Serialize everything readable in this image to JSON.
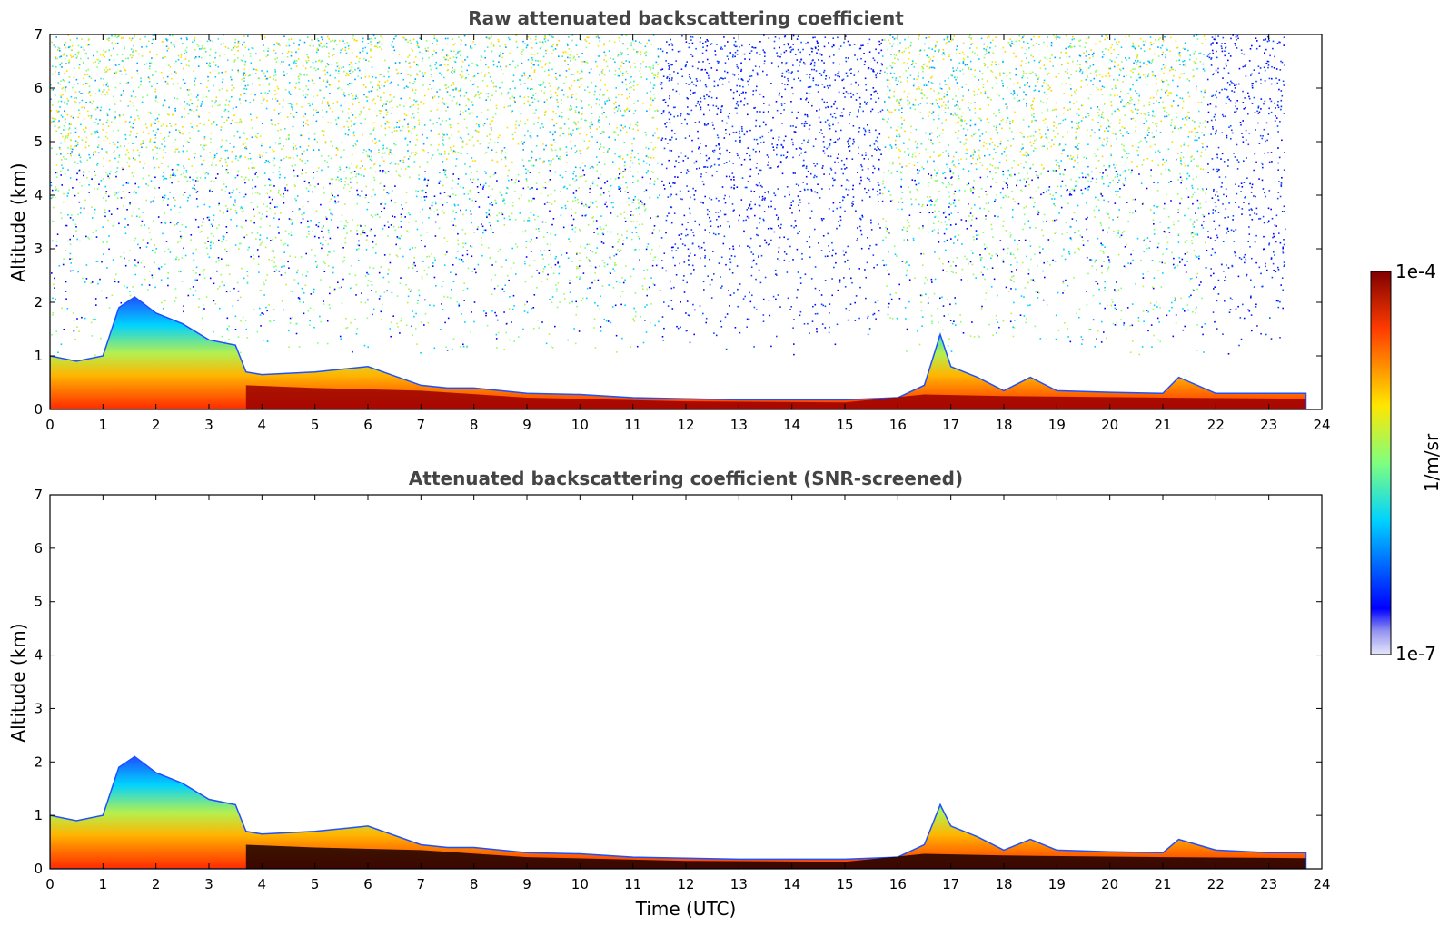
{
  "chart_data": [
    {
      "type": "heatmap",
      "title": "Raw attenuated backscattering coefficient",
      "xlabel": "",
      "ylabel": "Altitude (km)",
      "xlim": [
        0,
        24
      ],
      "ylim": [
        0,
        7
      ],
      "x_ticks": [
        "0",
        "1",
        "2",
        "3",
        "4",
        "5",
        "6",
        "7",
        "8",
        "9",
        "10",
        "11",
        "12",
        "13",
        "14",
        "15",
        "16",
        "17",
        "18",
        "19",
        "20",
        "21",
        "22",
        "23",
        "24"
      ],
      "y_ticks": [
        "0",
        "1",
        "2",
        "3",
        "4",
        "5",
        "6",
        "7"
      ],
      "boundary_layer_top_km": {
        "time_utc": [
          0,
          0.5,
          1.0,
          1.3,
          1.6,
          2.0,
          2.5,
          3.0,
          3.5,
          3.7,
          4.0,
          5.0,
          6.0,
          7.0,
          7.5,
          8.0,
          9.0,
          10.0,
          11.0,
          12.0,
          13.0,
          14.0,
          15.0,
          16.0,
          16.5,
          16.8,
          17.0,
          17.5,
          18.0,
          18.5,
          19.0,
          20.0,
          21.0,
          21.3,
          22.0,
          23.0,
          23.7
        ],
        "altitude_km": [
          1.0,
          0.9,
          1.0,
          1.9,
          2.1,
          1.8,
          1.6,
          1.3,
          1.2,
          0.7,
          0.65,
          0.7,
          0.8,
          0.45,
          0.4,
          0.4,
          0.3,
          0.28,
          0.22,
          0.2,
          0.18,
          0.18,
          0.18,
          0.22,
          0.45,
          1.4,
          0.8,
          0.6,
          0.35,
          0.6,
          0.35,
          0.32,
          0.3,
          0.6,
          0.3,
          0.3,
          0.3
        ]
      },
      "noise_regions": [
        {
          "time_range_utc": [
            0,
            11.5
          ],
          "description": "aerosol/noise speckle",
          "level": "mid"
        },
        {
          "time_range_utc": [
            11.5,
            15.7
          ],
          "description": "blue noise column",
          "level": "low"
        },
        {
          "time_range_utc": [
            15.7,
            21.8
          ],
          "description": "sparse noise",
          "level": "mid"
        },
        {
          "time_range_utc": [
            21.8,
            23.3
          ],
          "description": "blue noise column",
          "level": "low"
        }
      ]
    },
    {
      "type": "heatmap",
      "title": "Attenuated backscattering coefficient (SNR-screened)",
      "xlabel": "Time (UTC)",
      "ylabel": "Altitude (km)",
      "xlim": [
        0,
        24
      ],
      "ylim": [
        0,
        7
      ],
      "x_ticks": [
        "0",
        "1",
        "2",
        "3",
        "4",
        "5",
        "6",
        "7",
        "8",
        "9",
        "10",
        "11",
        "12",
        "13",
        "14",
        "15",
        "16",
        "17",
        "18",
        "19",
        "20",
        "21",
        "22",
        "23",
        "24"
      ],
      "y_ticks": [
        "0",
        "1",
        "2",
        "3",
        "4",
        "5",
        "6",
        "7"
      ],
      "boundary_layer_top_km": {
        "time_utc": [
          0,
          0.5,
          1.0,
          1.3,
          1.6,
          2.0,
          2.5,
          3.0,
          3.5,
          3.7,
          4.0,
          5.0,
          6.0,
          7.0,
          7.5,
          8.0,
          9.0,
          10.0,
          11.0,
          12.0,
          13.0,
          14.0,
          15.0,
          16.0,
          16.5,
          16.8,
          17.0,
          17.5,
          18.0,
          18.5,
          19.0,
          20.0,
          21.0,
          21.3,
          22.0,
          23.0,
          23.7
        ],
        "altitude_km": [
          1.0,
          0.9,
          1.0,
          1.9,
          2.1,
          1.8,
          1.6,
          1.3,
          1.2,
          0.7,
          0.65,
          0.7,
          0.8,
          0.45,
          0.4,
          0.4,
          0.3,
          0.28,
          0.22,
          0.2,
          0.18,
          0.18,
          0.18,
          0.22,
          0.45,
          1.2,
          0.8,
          0.6,
          0.35,
          0.55,
          0.35,
          0.32,
          0.3,
          0.55,
          0.35,
          0.3,
          0.3
        ]
      }
    }
  ],
  "colorbar": {
    "label": "1/m/sr",
    "max_label": "1e-4",
    "min_label": "1e-7",
    "scale": "log",
    "colors": [
      "#e6e6fa",
      "#0000ff",
      "#00d2ff",
      "#7fff7f",
      "#ffe600",
      "#ff3c00",
      "#800000"
    ]
  }
}
